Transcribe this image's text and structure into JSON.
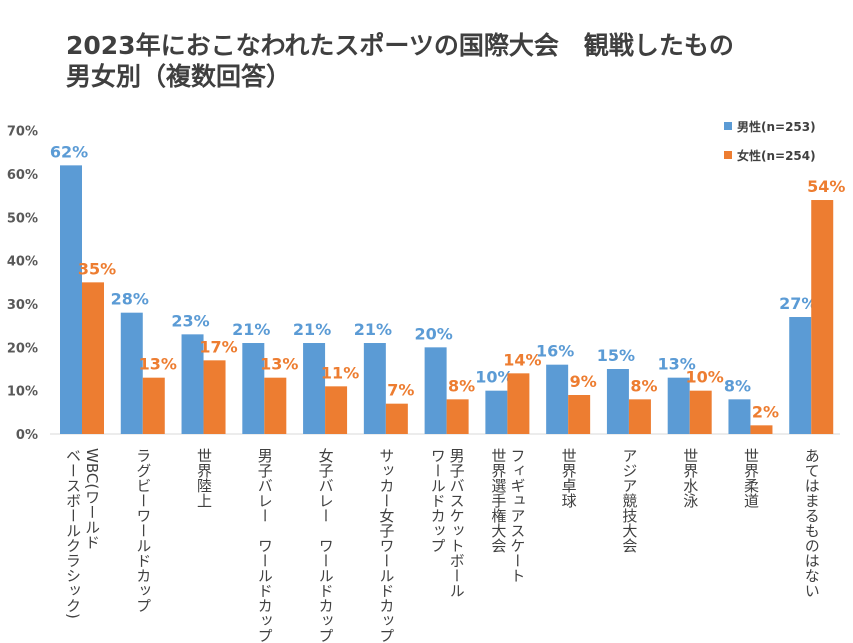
{
  "chart_data": {
    "type": "bar",
    "title_line1": "2023年におこなわれたスポーツの国際大会　観戦したもの",
    "title_line2": "男女別（複数回答）",
    "categories": [
      "WBC(ワールド\nベースボールクラシック)",
      "ラグビーワールドカップ",
      "世界陸上",
      "男子バレー　ワールドカップ",
      "女子バレー　ワールドカップ",
      "サッカー女子ワールドカップ",
      "男子バスケットボール\nワールドカップ",
      "フィギュアスケート\n世界選手権大会",
      "世界卓球",
      "アジア競技大会",
      "世界水泳",
      "世界柔道",
      "あてはまるものはない"
    ],
    "series": [
      {
        "name": "男性(n=253)",
        "color": "#5b9bd5",
        "values": [
          62,
          28,
          23,
          21,
          21,
          21,
          20,
          10,
          16,
          15,
          13,
          8,
          27
        ],
        "labels": [
          "62%",
          "28%",
          "23%",
          "21%",
          "21%",
          "21%",
          "20%",
          "10%",
          "16%",
          "15%",
          "13%",
          "8%",
          "27%"
        ]
      },
      {
        "name": "女性(n=254)",
        "color": "#ed7d31",
        "values": [
          35,
          13,
          17,
          13,
          11,
          7,
          8,
          14,
          9,
          8,
          10,
          2,
          54
        ],
        "labels": [
          "35%",
          "13%",
          "17%",
          "13%",
          "11%",
          "7%",
          "8%",
          "14%",
          "9%",
          "8%",
          "10%",
          "2%",
          "54%"
        ]
      }
    ],
    "yticks": [
      "0%",
      "10%",
      "20%",
      "30%",
      "40%",
      "50%",
      "60%",
      "70%"
    ],
    "ylim": [
      0,
      70
    ],
    "legend_position": "top-right",
    "grid": false
  }
}
